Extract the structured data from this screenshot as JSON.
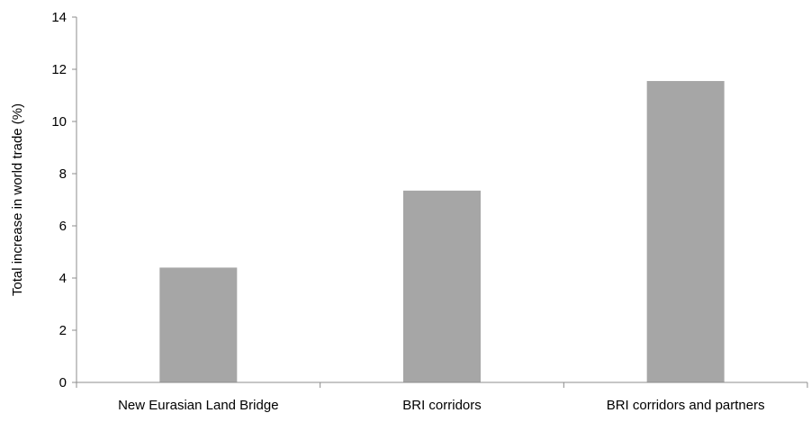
{
  "chart_data": {
    "type": "bar",
    "title": "",
    "xlabel": "",
    "ylabel": "Total increase in world trade (%)",
    "categories": [
      "New Eurasian Land Bridge",
      "BRI corridors",
      "BRI corridors and partners"
    ],
    "values": [
      4.4,
      7.35,
      11.55
    ],
    "ylim": [
      0,
      14
    ],
    "yticks": [
      0,
      2,
      4,
      6,
      8,
      10,
      12,
      14
    ],
    "grid": false,
    "legend": "none",
    "bar_color": "#a6a6a6",
    "axis_color": "#8c8c8c"
  }
}
